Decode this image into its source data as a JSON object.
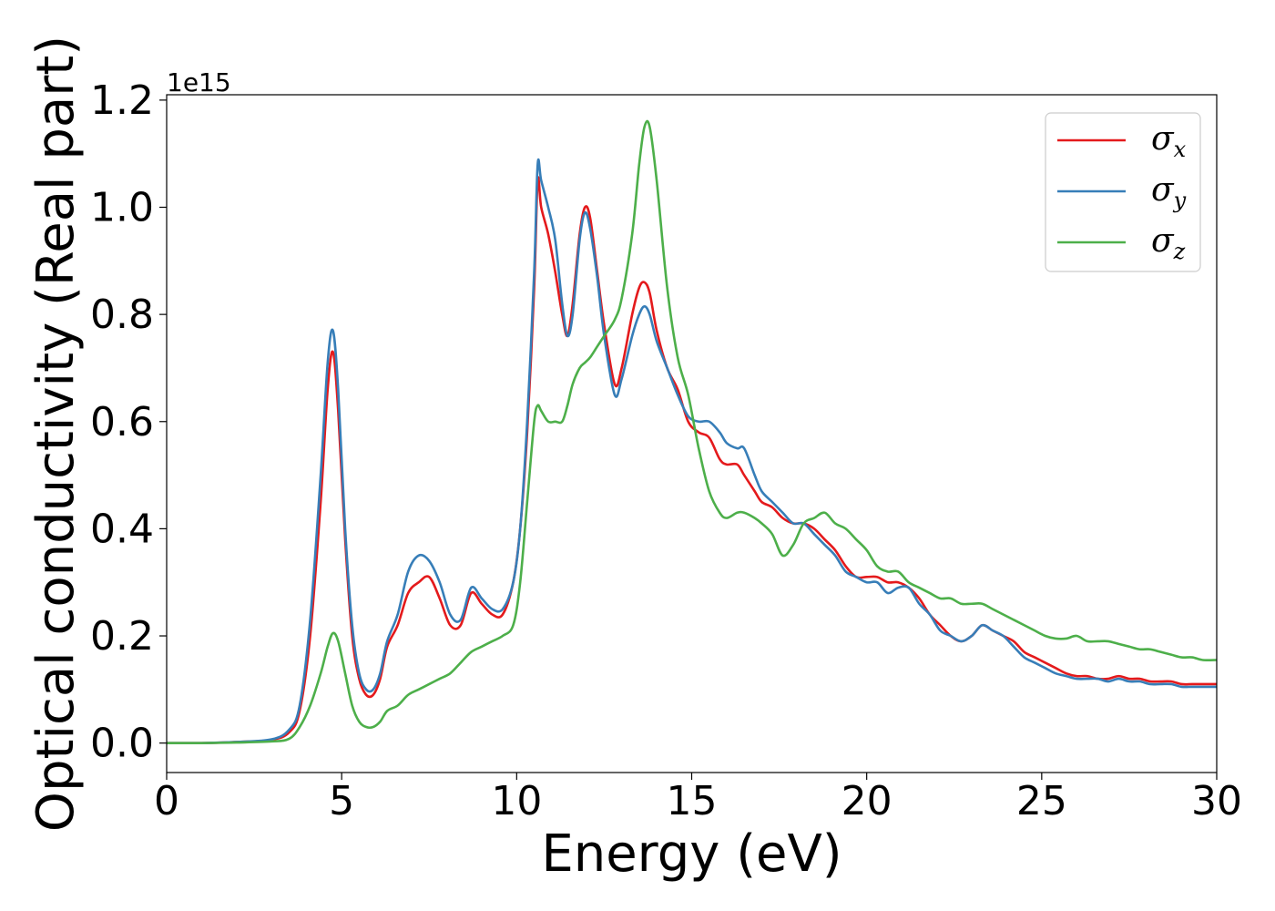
{
  "chart_data": {
    "type": "line",
    "title": "",
    "xlabel": "Energy (eV)",
    "ylabel": "Optical conductivity (Real part)",
    "y_offset_label": "1e15",
    "xlim": [
      0,
      30
    ],
    "ylim": [
      -0.055,
      1.21
    ],
    "xticks": [
      0,
      5,
      10,
      15,
      20,
      25,
      30
    ],
    "xtick_labels": [
      "0",
      "5",
      "10",
      "15",
      "20",
      "25",
      "30"
    ],
    "yticks": [
      0.0,
      0.2,
      0.4,
      0.6,
      0.8,
      1.0,
      1.2
    ],
    "ytick_labels": [
      "0.0",
      "0.2",
      "0.4",
      "0.6",
      "0.8",
      "1.0",
      "1.2"
    ],
    "grid": false,
    "legend_position": "top-right",
    "series": [
      {
        "name": "σx",
        "symbol": "σ",
        "subscript": "x",
        "color": "#e41a1c",
        "x": [
          0,
          1,
          2,
          3,
          3.5,
          3.8,
          4.1,
          4.4,
          4.6,
          4.75,
          4.9,
          5.1,
          5.3,
          5.5,
          5.7,
          5.9,
          6.1,
          6.3,
          6.6,
          6.9,
          7.2,
          7.5,
          7.8,
          8.1,
          8.4,
          8.7,
          9.0,
          9.3,
          9.6,
          9.9,
          10.1,
          10.3,
          10.5,
          10.6,
          10.7,
          10.9,
          11.1,
          11.3,
          11.45,
          11.6,
          11.8,
          11.95,
          12.1,
          12.3,
          12.5,
          12.8,
          13.0,
          13.3,
          13.5,
          13.65,
          13.8,
          14.0,
          14.3,
          14.6,
          14.9,
          15.2,
          15.5,
          15.8,
          16.0,
          16.3,
          16.5,
          16.8,
          17.0,
          17.3,
          17.6,
          17.9,
          18.2,
          18.5,
          18.8,
          19.1,
          19.4,
          19.7,
          20.0,
          20.3,
          20.6,
          20.9,
          21.2,
          21.5,
          21.8,
          22.1,
          22.4,
          22.7,
          23.0,
          23.3,
          23.6,
          23.9,
          24.2,
          24.5,
          24.8,
          25.1,
          25.4,
          25.7,
          26.0,
          26.3,
          26.6,
          26.9,
          27.2,
          27.5,
          27.8,
          28.1,
          28.4,
          28.7,
          29.0,
          29.3,
          29.6,
          30.0
        ],
        "y": [
          0.0,
          0.0,
          0.002,
          0.006,
          0.02,
          0.06,
          0.2,
          0.45,
          0.66,
          0.73,
          0.62,
          0.38,
          0.2,
          0.12,
          0.09,
          0.09,
          0.12,
          0.18,
          0.22,
          0.28,
          0.3,
          0.31,
          0.27,
          0.22,
          0.22,
          0.28,
          0.26,
          0.24,
          0.24,
          0.3,
          0.4,
          0.58,
          0.85,
          1.05,
          1.0,
          0.95,
          0.88,
          0.8,
          0.76,
          0.82,
          0.95,
          1.0,
          0.98,
          0.88,
          0.78,
          0.67,
          0.7,
          0.8,
          0.85,
          0.86,
          0.84,
          0.77,
          0.7,
          0.66,
          0.6,
          0.58,
          0.57,
          0.53,
          0.52,
          0.52,
          0.5,
          0.47,
          0.45,
          0.44,
          0.42,
          0.41,
          0.41,
          0.4,
          0.38,
          0.36,
          0.33,
          0.31,
          0.31,
          0.31,
          0.3,
          0.3,
          0.29,
          0.27,
          0.24,
          0.22,
          0.2,
          0.19,
          0.2,
          0.22,
          0.21,
          0.2,
          0.19,
          0.17,
          0.16,
          0.15,
          0.14,
          0.13,
          0.125,
          0.125,
          0.12,
          0.12,
          0.125,
          0.12,
          0.12,
          0.115,
          0.115,
          0.115,
          0.11,
          0.11,
          0.11,
          0.11
        ]
      },
      {
        "name": "σy",
        "symbol": "σ",
        "subscript": "y",
        "color": "#377eb8",
        "x": [
          0,
          1,
          2,
          3,
          3.5,
          3.8,
          4.1,
          4.4,
          4.6,
          4.75,
          4.9,
          5.1,
          5.3,
          5.5,
          5.7,
          5.9,
          6.1,
          6.3,
          6.6,
          6.9,
          7.2,
          7.5,
          7.8,
          8.1,
          8.4,
          8.7,
          9.0,
          9.3,
          9.6,
          9.9,
          10.1,
          10.3,
          10.5,
          10.6,
          10.7,
          10.9,
          11.1,
          11.3,
          11.45,
          11.6,
          11.8,
          11.95,
          12.1,
          12.3,
          12.5,
          12.8,
          13.0,
          13.3,
          13.5,
          13.65,
          13.8,
          14.0,
          14.3,
          14.6,
          14.9,
          15.2,
          15.5,
          15.8,
          16.0,
          16.3,
          16.5,
          16.8,
          17.0,
          17.3,
          17.6,
          17.9,
          18.2,
          18.5,
          18.8,
          19.1,
          19.4,
          19.7,
          20.0,
          20.3,
          20.6,
          20.9,
          21.2,
          21.5,
          21.8,
          22.1,
          22.4,
          22.7,
          23.0,
          23.3,
          23.6,
          23.9,
          24.2,
          24.5,
          24.8,
          25.1,
          25.4,
          25.7,
          26.0,
          26.3,
          26.6,
          26.9,
          27.2,
          27.5,
          27.8,
          28.1,
          28.4,
          28.7,
          29.0,
          29.3,
          29.6,
          30.0
        ],
        "y": [
          0.0,
          0.0,
          0.002,
          0.007,
          0.025,
          0.07,
          0.23,
          0.5,
          0.71,
          0.77,
          0.66,
          0.4,
          0.22,
          0.13,
          0.1,
          0.1,
          0.13,
          0.19,
          0.24,
          0.32,
          0.35,
          0.34,
          0.3,
          0.24,
          0.23,
          0.29,
          0.27,
          0.25,
          0.25,
          0.3,
          0.4,
          0.6,
          0.88,
          1.08,
          1.05,
          1.0,
          0.94,
          0.82,
          0.76,
          0.8,
          0.94,
          0.99,
          0.96,
          0.87,
          0.76,
          0.65,
          0.68,
          0.76,
          0.8,
          0.815,
          0.8,
          0.75,
          0.7,
          0.65,
          0.61,
          0.6,
          0.6,
          0.58,
          0.56,
          0.55,
          0.55,
          0.5,
          0.47,
          0.45,
          0.43,
          0.41,
          0.41,
          0.39,
          0.37,
          0.35,
          0.32,
          0.31,
          0.3,
          0.3,
          0.28,
          0.29,
          0.29,
          0.26,
          0.24,
          0.21,
          0.2,
          0.19,
          0.2,
          0.22,
          0.21,
          0.2,
          0.18,
          0.16,
          0.15,
          0.14,
          0.13,
          0.125,
          0.12,
          0.12,
          0.12,
          0.115,
          0.12,
          0.115,
          0.115,
          0.11,
          0.11,
          0.11,
          0.105,
          0.105,
          0.105,
          0.105
        ]
      },
      {
        "name": "σz",
        "symbol": "σ",
        "subscript": "z",
        "color": "#4daf4a",
        "x": [
          0,
          1,
          2,
          3,
          3.5,
          3.8,
          4.1,
          4.4,
          4.6,
          4.75,
          4.9,
          5.1,
          5.3,
          5.5,
          5.7,
          5.9,
          6.1,
          6.3,
          6.6,
          6.9,
          7.2,
          7.5,
          7.8,
          8.1,
          8.4,
          8.7,
          9.0,
          9.3,
          9.6,
          9.9,
          10.1,
          10.3,
          10.5,
          10.6,
          10.7,
          10.9,
          11.1,
          11.3,
          11.45,
          11.6,
          11.8,
          11.95,
          12.1,
          12.3,
          12.5,
          12.8,
          13.0,
          13.3,
          13.5,
          13.65,
          13.8,
          14.0,
          14.3,
          14.6,
          14.9,
          15.2,
          15.5,
          15.8,
          16.0,
          16.3,
          16.5,
          16.8,
          17.0,
          17.3,
          17.6,
          17.9,
          18.2,
          18.5,
          18.8,
          19.1,
          19.4,
          19.7,
          20.0,
          20.3,
          20.6,
          20.9,
          21.2,
          21.5,
          21.8,
          22.1,
          22.4,
          22.7,
          23.0,
          23.3,
          23.6,
          23.9,
          24.2,
          24.5,
          24.8,
          25.1,
          25.4,
          25.7,
          26.0,
          26.3,
          26.6,
          26.9,
          27.2,
          27.5,
          27.8,
          28.1,
          28.4,
          28.7,
          29.0,
          29.3,
          29.6,
          30.0
        ],
        "y": [
          0.0,
          0.0,
          0.001,
          0.003,
          0.008,
          0.03,
          0.07,
          0.13,
          0.18,
          0.205,
          0.19,
          0.13,
          0.07,
          0.04,
          0.03,
          0.03,
          0.04,
          0.06,
          0.07,
          0.09,
          0.1,
          0.11,
          0.12,
          0.13,
          0.15,
          0.17,
          0.18,
          0.19,
          0.2,
          0.22,
          0.3,
          0.45,
          0.6,
          0.63,
          0.62,
          0.6,
          0.6,
          0.6,
          0.63,
          0.67,
          0.7,
          0.71,
          0.72,
          0.74,
          0.76,
          0.79,
          0.83,
          0.95,
          1.08,
          1.15,
          1.15,
          1.05,
          0.85,
          0.72,
          0.65,
          0.55,
          0.47,
          0.43,
          0.42,
          0.43,
          0.43,
          0.42,
          0.41,
          0.39,
          0.35,
          0.37,
          0.41,
          0.42,
          0.43,
          0.41,
          0.4,
          0.38,
          0.36,
          0.33,
          0.32,
          0.32,
          0.3,
          0.29,
          0.28,
          0.27,
          0.27,
          0.26,
          0.26,
          0.26,
          0.25,
          0.24,
          0.23,
          0.22,
          0.21,
          0.2,
          0.195,
          0.195,
          0.2,
          0.19,
          0.19,
          0.19,
          0.185,
          0.18,
          0.175,
          0.175,
          0.17,
          0.165,
          0.16,
          0.16,
          0.155,
          0.155
        ]
      }
    ]
  }
}
